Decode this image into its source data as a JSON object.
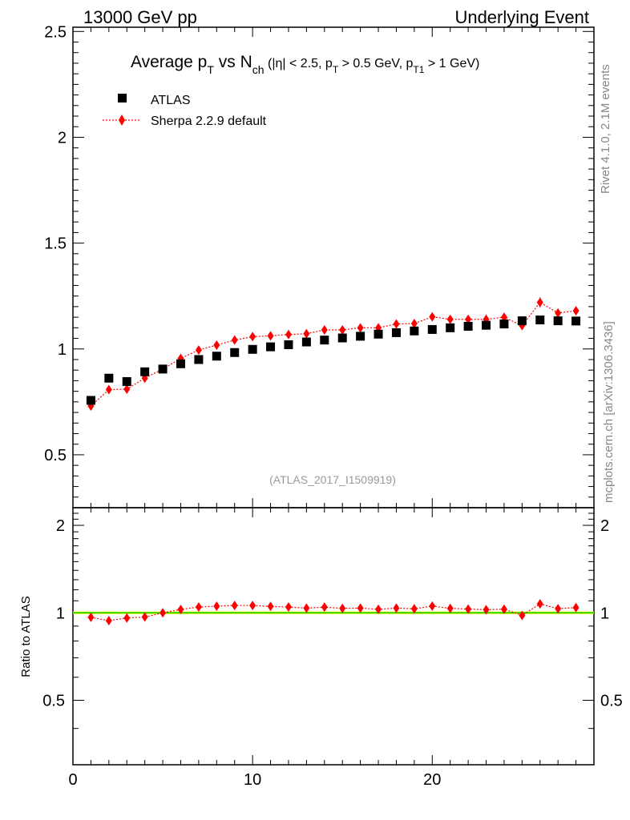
{
  "header": {
    "left": "13000 GeV pp",
    "right": "Underlying Event"
  },
  "side": {
    "rivet": "Rivet 4.1.0,  2.1M events",
    "source": "mcplots.cern.ch [arXiv:1306.3436]"
  },
  "colors": {
    "data": "#000000",
    "mc": "#ff0000",
    "band": "#ffff00",
    "refline": "#00cc00"
  },
  "chart_data": {
    "type": "scatter",
    "title_parts": {
      "main": "Average p",
      "sub_t": "T",
      "vs": " vs N",
      "sub_ch": "ch",
      "cuts": " (|η| < 2.5, p",
      "sub_t2": "T",
      "cuts2": " > 0.5 GeV, p",
      "sub_t1": "T1",
      "cuts3": " > 1 GeV)"
    },
    "analysis_label": "(ATLAS_2017_I1509919)",
    "xlim": [
      0,
      29
    ],
    "ylim_main": [
      0.25,
      2.52
    ],
    "ylim_ratio": [
      0.3,
      2.3
    ],
    "x_ticks": [
      0,
      10,
      20
    ],
    "y_ticks_main": [
      0.5,
      1,
      1.5,
      2,
      2.5
    ],
    "y_ticks_ratio": [
      0.5,
      1,
      2
    ],
    "ratio_ylabel": "Ratio to ATLAS",
    "series": [
      {
        "name": "ATLAS",
        "x": [
          1,
          2,
          3,
          4,
          5,
          6,
          7,
          8,
          9,
          10,
          11,
          12,
          13,
          14,
          15,
          16,
          17,
          18,
          19,
          20,
          21,
          22,
          23,
          24,
          25,
          26,
          27,
          28
        ],
        "values": [
          0.757,
          0.862,
          0.846,
          0.892,
          0.905,
          0.93,
          0.95,
          0.966,
          0.983,
          0.998,
          1.01,
          1.02,
          1.033,
          1.042,
          1.052,
          1.06,
          1.07,
          1.077,
          1.085,
          1.092,
          1.1,
          1.107,
          1.112,
          1.118,
          1.133,
          1.137,
          1.133,
          1.132
        ]
      },
      {
        "name": "Sherpa 2.2.9 default",
        "x": [
          1,
          2,
          3,
          4,
          5,
          6,
          7,
          8,
          9,
          10,
          11,
          12,
          13,
          14,
          15,
          16,
          17,
          18,
          19,
          20,
          21,
          22,
          23,
          24,
          25,
          26,
          27,
          28
        ],
        "values": [
          0.73,
          0.808,
          0.81,
          0.862,
          0.905,
          0.955,
          0.995,
          1.018,
          1.042,
          1.058,
          1.062,
          1.068,
          1.072,
          1.09,
          1.09,
          1.1,
          1.1,
          1.118,
          1.12,
          1.152,
          1.14,
          1.14,
          1.14,
          1.15,
          1.11,
          1.22,
          1.17,
          1.18
        ],
        "errors": [
          0.01,
          0.01,
          0.01,
          0.01,
          0.01,
          0.01,
          0.01,
          0.01,
          0.01,
          0.01,
          0.01,
          0.01,
          0.01,
          0.01,
          0.01,
          0.01,
          0.01,
          0.01,
          0.01,
          0.012,
          0.012,
          0.013,
          0.013,
          0.015,
          0.015,
          0.025,
          0.018,
          0.02
        ]
      }
    ],
    "ratio": {
      "x": [
        1,
        2,
        3,
        4,
        5,
        6,
        7,
        8,
        9,
        10,
        11,
        12,
        13,
        14,
        15,
        16,
        17,
        18,
        19,
        20,
        21,
        22,
        23,
        24,
        25,
        26,
        27,
        28
      ],
      "values": [
        0.965,
        0.94,
        0.96,
        0.967,
        1.0,
        1.027,
        1.047,
        1.054,
        1.06,
        1.06,
        1.052,
        1.047,
        1.038,
        1.046,
        1.036,
        1.038,
        1.028,
        1.038,
        1.032,
        1.055,
        1.036,
        1.03,
        1.025,
        1.029,
        0.98,
        1.073,
        1.033,
        1.042
      ]
    }
  }
}
